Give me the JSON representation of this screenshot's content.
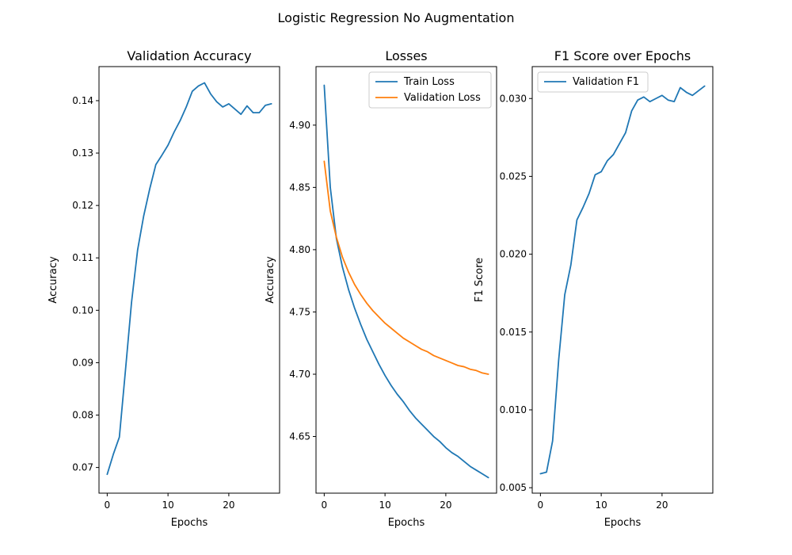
{
  "figure": {
    "suptitle": "Logistic Regression No Augmentation"
  },
  "colors": {
    "series1": "#1f77b4",
    "series2": "#ff7f0e",
    "axis": "#000000"
  },
  "chart_data": [
    {
      "type": "line",
      "title": "Validation Accuracy",
      "xlabel": "Epochs",
      "ylabel": "Accuracy",
      "xlim": [
        -1.35,
        28.35
      ],
      "ylim": [
        0.0651,
        0.1465
      ],
      "xticks": [
        0,
        10,
        20
      ],
      "yticks": [
        0.07,
        0.08,
        0.09,
        0.1,
        0.11,
        0.12,
        0.13,
        0.14
      ],
      "ytick_labels": [
        "0.07",
        "0.08",
        "0.09",
        "0.10",
        "0.11",
        "0.12",
        "0.13",
        "0.14"
      ],
      "legend": "none",
      "series": [
        {
          "color": "#1f77b4",
          "x": [
            0,
            1,
            2,
            3,
            4,
            5,
            6,
            7,
            8,
            9,
            10,
            11,
            12,
            13,
            14,
            15,
            16,
            17,
            18,
            19,
            20,
            21,
            22,
            23,
            24,
            25,
            26,
            27
          ],
          "y": [
            0.0687,
            0.0725,
            0.0758,
            0.0885,
            0.1015,
            0.1115,
            0.118,
            0.1232,
            0.1278,
            0.1296,
            0.1315,
            0.134,
            0.1362,
            0.1388,
            0.1418,
            0.1428,
            0.1434,
            0.1413,
            0.1398,
            0.1388,
            0.1394,
            0.1384,
            0.1374,
            0.139,
            0.1377,
            0.1377,
            0.1391,
            0.1394
          ]
        }
      ]
    },
    {
      "type": "line",
      "title": "Losses",
      "xlabel": "Epochs",
      "ylabel": "Accuracy",
      "xlim": [
        -1.35,
        28.35
      ],
      "ylim": [
        4.6045,
        4.947
      ],
      "xticks": [
        0,
        10,
        20
      ],
      "yticks": [
        4.65,
        4.7,
        4.75,
        4.8,
        4.85,
        4.9
      ],
      "ytick_labels": [
        "4.65",
        "4.70",
        "4.75",
        "4.80",
        "4.85",
        "4.90"
      ],
      "legend": "upper right",
      "series": [
        {
          "name": "Train Loss",
          "color": "#1f77b4",
          "x": [
            0,
            1,
            2,
            3,
            4,
            5,
            6,
            7,
            8,
            9,
            10,
            11,
            12,
            13,
            14,
            15,
            16,
            17,
            18,
            19,
            20,
            21,
            22,
            23,
            24,
            25,
            26,
            27
          ],
          "y": [
            4.932,
            4.85,
            4.809,
            4.786,
            4.768,
            4.753,
            4.74,
            4.728,
            4.718,
            4.708,
            4.699,
            4.691,
            4.684,
            4.678,
            4.671,
            4.665,
            4.66,
            4.655,
            4.65,
            4.646,
            4.641,
            4.637,
            4.634,
            4.63,
            4.626,
            4.623,
            4.62,
            4.617
          ]
        },
        {
          "name": "Validation Loss",
          "color": "#ff7f0e",
          "x": [
            0,
            1,
            2,
            3,
            4,
            5,
            6,
            7,
            8,
            9,
            10,
            11,
            12,
            13,
            14,
            15,
            16,
            17,
            18,
            19,
            20,
            21,
            22,
            23,
            24,
            25,
            26,
            27
          ],
          "y": [
            4.871,
            4.831,
            4.81,
            4.794,
            4.782,
            4.772,
            4.764,
            4.757,
            4.751,
            4.746,
            4.741,
            4.737,
            4.733,
            4.729,
            4.726,
            4.723,
            4.72,
            4.718,
            4.715,
            4.713,
            4.711,
            4.709,
            4.707,
            4.706,
            4.704,
            4.703,
            4.701,
            4.7
          ]
        }
      ]
    },
    {
      "type": "line",
      "title": "F1 Score over Epochs",
      "xlabel": "Epochs",
      "ylabel": "F1 Score",
      "xlim": [
        -1.35,
        28.35
      ],
      "ylim": [
        0.00465,
        0.03205
      ],
      "xticks": [
        0,
        10,
        20
      ],
      "yticks": [
        0.005,
        0.01,
        0.015,
        0.02,
        0.025,
        0.03
      ],
      "ytick_labels": [
        "0.005",
        "0.010",
        "0.015",
        "0.020",
        "0.025",
        "0.030"
      ],
      "legend": "upper left",
      "series": [
        {
          "name": "Validation F1",
          "color": "#1f77b4",
          "x": [
            0,
            1,
            2,
            3,
            4,
            5,
            6,
            7,
            8,
            9,
            10,
            11,
            12,
            13,
            14,
            15,
            16,
            17,
            18,
            19,
            20,
            21,
            22,
            23,
            24,
            25,
            26,
            27
          ],
          "y": [
            0.0059,
            0.006,
            0.008,
            0.0132,
            0.0174,
            0.0193,
            0.0222,
            0.023,
            0.0239,
            0.0251,
            0.0253,
            0.026,
            0.0264,
            0.0271,
            0.0278,
            0.0292,
            0.0299,
            0.0301,
            0.0298,
            0.03,
            0.0302,
            0.0299,
            0.0298,
            0.0307,
            0.0304,
            0.0302,
            0.0305,
            0.0308
          ]
        }
      ]
    }
  ]
}
